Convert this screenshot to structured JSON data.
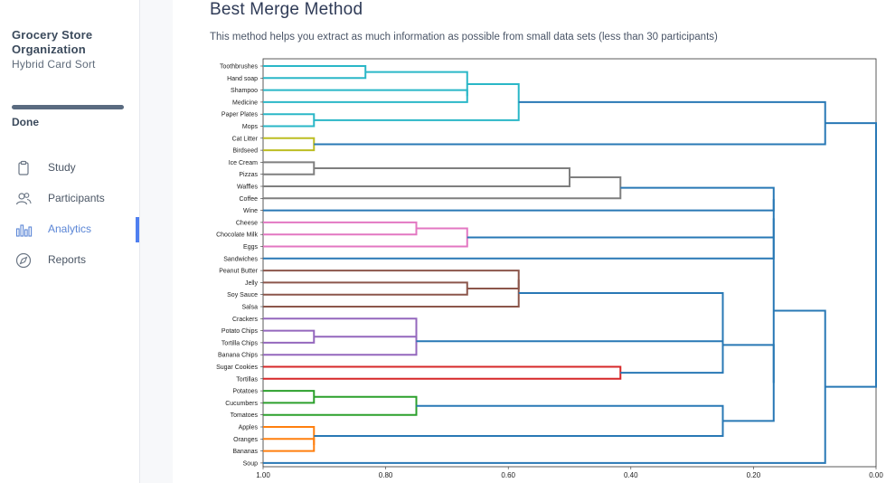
{
  "study": {
    "title": "Grocery Store Organization",
    "subtitle": "Hybrid Card Sort",
    "status": "Done"
  },
  "nav": [
    {
      "label": "Study",
      "icon": "clipboard-icon",
      "active": false
    },
    {
      "label": "Participants",
      "icon": "users-icon",
      "active": false
    },
    {
      "label": "Analytics",
      "icon": "bar-chart-icon",
      "active": true
    },
    {
      "label": "Reports",
      "icon": "compass-icon",
      "active": false
    }
  ],
  "main": {
    "title": "Best Merge Method",
    "description": "This method helps you extract as much information as possible from small data sets (less than 30 participants)"
  },
  "colors": {
    "accent": "#4f7ff0",
    "link": "#2878b5"
  },
  "chart_data": {
    "type": "dendrogram",
    "orientation": "left",
    "xlim": [
      1.0,
      0.0
    ],
    "xticks": [
      "1.00",
      "0.80",
      "0.60",
      "0.40",
      "0.20",
      "0.00"
    ],
    "xtick_values": [
      1.0,
      0.8,
      0.6,
      0.4,
      0.2,
      0.0
    ],
    "leaves": [
      "Toothbrushes",
      "Hand soap",
      "Shampoo",
      "Medicine",
      "Paper Plates",
      "Mops",
      "Cat Litter",
      "Birdseed",
      "Ice Cream",
      "Pizzas",
      "Waffles",
      "Coffee",
      "Wine",
      "Cheese",
      "Chocolate Milk",
      "Eggs",
      "Sandwiches",
      "Peanut Butter",
      "Jelly",
      "Soy Sauce",
      "Salsa",
      "Crackers",
      "Potato Chips",
      "Tortilla Chips",
      "Banana Chips",
      "Sugar Cookies",
      "Tortillas",
      "Potatoes",
      "Cucumbers",
      "Tomatoes",
      "Apples",
      "Oranges",
      "Bananas",
      "Soup"
    ],
    "merges": [
      {
        "a": 0,
        "b": 1,
        "h": 0.833,
        "color": "#2ab7c7"
      },
      {
        "a": 4,
        "b": 5,
        "h": 0.917,
        "color": "#2ab7c7"
      },
      {
        "a": 2,
        "b": 3,
        "h": 0.667,
        "color": "#2ab7c7"
      },
      {
        "a": "m0",
        "b": "m2",
        "h": 0.667,
        "color": "#2ab7c7"
      },
      {
        "a": "m3",
        "b": "m1",
        "h": 0.583,
        "color": "#2ab7c7"
      },
      {
        "a": 6,
        "b": 7,
        "h": 0.917,
        "color": "#bcbd22"
      },
      {
        "a": "m4",
        "b": "m5",
        "h": 0.083,
        "color": "#2878b5"
      },
      {
        "a": 8,
        "b": 9,
        "h": 0.917,
        "color": "#7f7f7f"
      },
      {
        "a": "m7",
        "b": 10,
        "h": 0.5,
        "color": "#7f7f7f"
      },
      {
        "a": "m8",
        "b": 11,
        "h": 0.417,
        "color": "#7f7f7f"
      },
      {
        "a": 13,
        "b": 14,
        "h": 0.75,
        "color": "#e377c2"
      },
      {
        "a": "m10",
        "b": 15,
        "h": 0.667,
        "color": "#e377c2"
      },
      {
        "a": 18,
        "b": 19,
        "h": 0.667,
        "color": "#8c564b"
      },
      {
        "a": 17,
        "b": "m12",
        "h": 0.583,
        "color": "#8c564b"
      },
      {
        "a": "m13",
        "b": 20,
        "h": 0.583,
        "color": "#8c564b"
      },
      {
        "a": 22,
        "b": 23,
        "h": 0.917,
        "color": "#9467bd"
      },
      {
        "a": 21,
        "b": "m15",
        "h": 0.75,
        "color": "#9467bd"
      },
      {
        "a": "m16",
        "b": 24,
        "h": 0.75,
        "color": "#9467bd"
      },
      {
        "a": 25,
        "b": 26,
        "h": 0.417,
        "color": "#d62728"
      },
      {
        "a": 27,
        "b": 28,
        "h": 0.917,
        "color": "#2ca02c"
      },
      {
        "a": "m19",
        "b": 29,
        "h": 0.75,
        "color": "#2ca02c"
      },
      {
        "a": 31,
        "b": 32,
        "h": 0.917,
        "color": "#ff7f0e"
      },
      {
        "a": 30,
        "b": "m21",
        "h": 0.917,
        "color": "#ff7f0e"
      },
      {
        "a": "m14",
        "b": "m17",
        "h": 0.25,
        "color": "#2878b5"
      },
      {
        "a": "m23",
        "b": "m18",
        "h": 0.25,
        "color": "#2878b5"
      },
      {
        "a": "m20",
        "b": "m22",
        "h": 0.25,
        "color": "#2878b5"
      },
      {
        "a": "m24",
        "b": "m25",
        "h": 0.167,
        "color": "#2878b5"
      },
      {
        "a": "m9",
        "b": 12,
        "h": 0.167,
        "color": "#2878b5"
      },
      {
        "a": "m27",
        "b": "m11",
        "h": 0.167,
        "color": "#2878b5"
      },
      {
        "a": "m28",
        "b": 16,
        "h": 0.167,
        "color": "#2878b5"
      },
      {
        "a": "m29",
        "b": "m26",
        "h": 0.167,
        "color": "#2878b5"
      },
      {
        "a": "m30",
        "b": 33,
        "h": 0.083,
        "color": "#2878b5"
      },
      {
        "a": "m6",
        "b": "m31",
        "h": 0.0,
        "color": "#2878b5"
      }
    ]
  }
}
